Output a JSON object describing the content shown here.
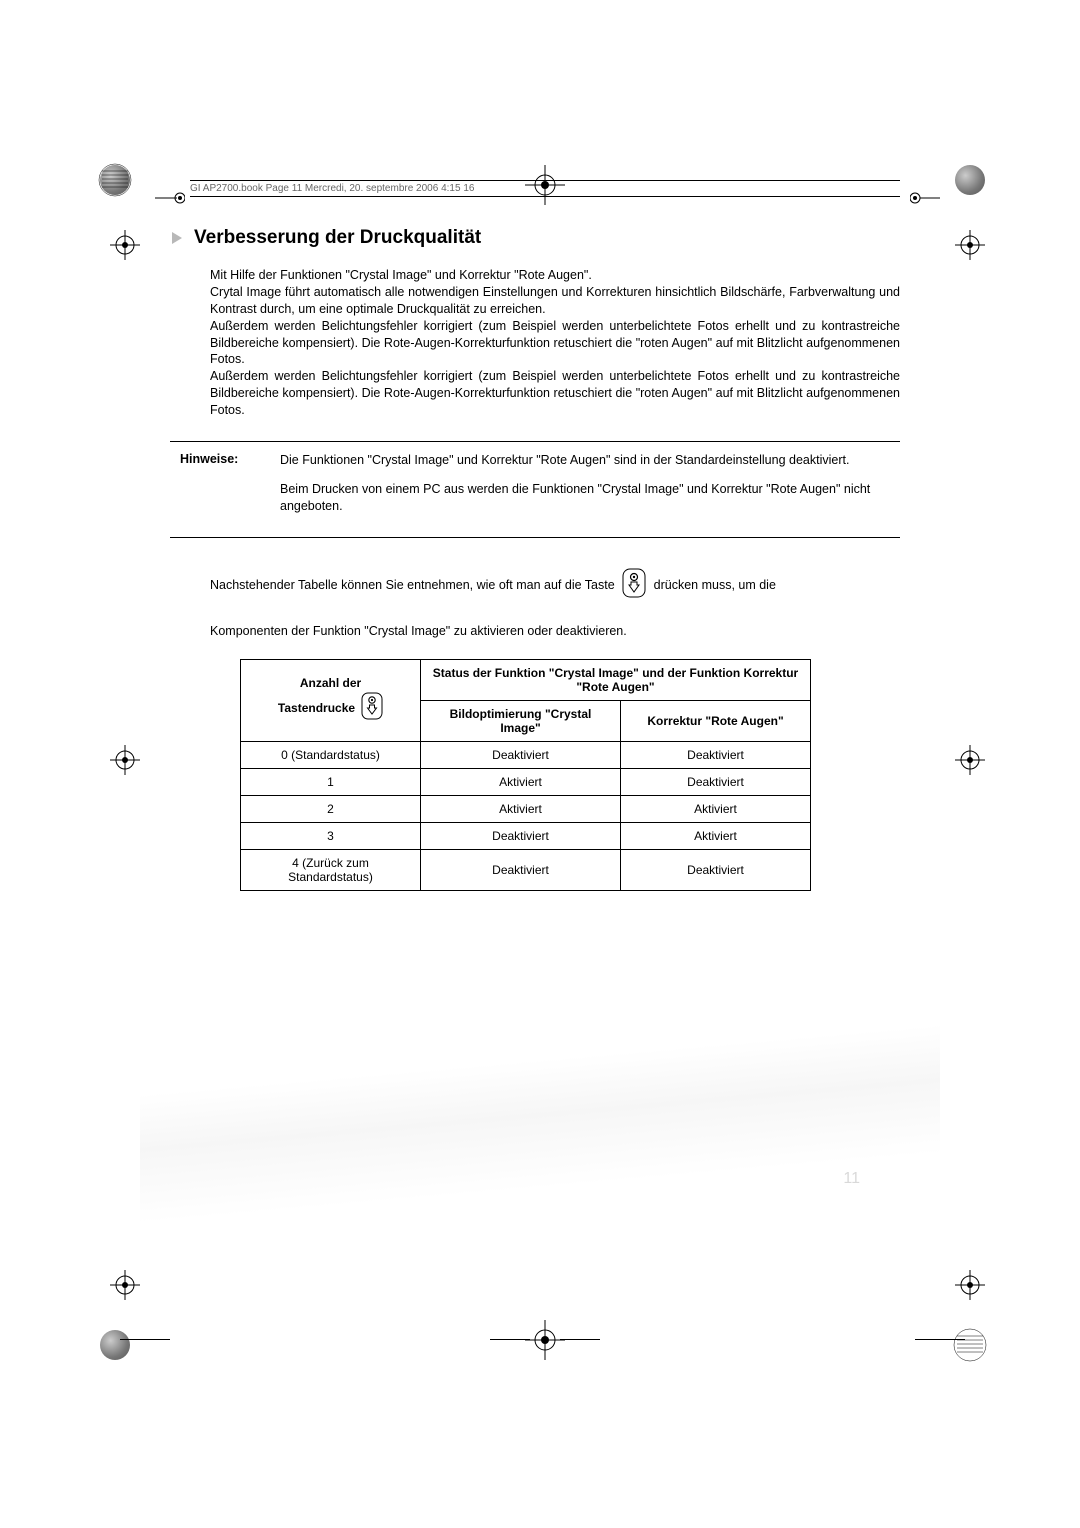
{
  "header_line": "GI AP2700.book  Page 11  Mercredi, 20. septembre 2006  4:15 16",
  "section_title": "Verbesserung der Druckqualität",
  "body_paragraph": "Mit Hilfe der Funktionen \"Crystal Image\" und  Korrektur  \"Rote Augen\".\nCrytal Image führt automatisch alle notwendigen Einstellungen und Korrekturen hinsichtlich Bildschärfe, Farbverwaltung und Kontrast durch, um eine optimale Druckqualität zu erreichen.\nAußerdem werden Belichtungsfehler korrigiert (zum Beispiel werden unterbelichtete Fotos erhellt und zu kontrastreiche Bildbereiche kompensiert). Die Rote-Augen-Korrekturfunktion retuschiert die \"roten Augen\" auf mit Blitzlicht aufgenommenen Fotos.\nAußerdem werden Belichtungsfehler korrigiert (zum Beispiel werden unterbelichtete Fotos erhellt und zu kontrastreiche Bildbereiche kompensiert). Die Rote-Augen-Korrekturfunktion retuschiert die \"roten Augen\" auf mit Blitzlicht aufgenommenen Fotos.",
  "hinweise_label": "Hinweise:",
  "hinweise_p1": "Die Funktionen \"Crystal Image\" und  Korrektur \"Rote Augen\" sind in der Standardeinstellung deaktiviert.",
  "hinweise_p2": "Beim Drucken von einem PC aus werden die Funktionen \"Crystal Image\" und Korrektur \"Rote Augen\" nicht angeboten.",
  "below_text_1": "Nachstehender Tabelle können Sie entnehmen, wie oft man auf die Taste",
  "below_text_2": "drücken muss, um die",
  "below_text_3": "Komponenten der Funktion \"Crystal Image\" zu aktivieren oder deaktivieren.",
  "table": {
    "header_col1_l1": "Anzahl der",
    "header_col1_l2": "Tastendrucke",
    "header_span": "Status der Funktion \"Crystal Image\" und der Funktion Korrektur \"Rote Augen\"",
    "header_col2": "Bildoptimierung \"Crystal Image\"",
    "header_col3": "Korrektur \"Rote Augen\"",
    "rows": [
      {
        "a": "0 (Standardstatus)",
        "b": "Deaktiviert",
        "c": "Deaktiviert"
      },
      {
        "a": "1",
        "b": "Aktiviert",
        "c": "Deaktiviert"
      },
      {
        "a": "2",
        "b": "Aktiviert",
        "c": "Aktiviert"
      },
      {
        "a": "3",
        "b": "Deaktiviert",
        "c": "Aktiviert"
      },
      {
        "a": "4 (Zurück zum Standardstatus)",
        "b": "Deaktiviert",
        "c": "Deaktiviert"
      }
    ]
  },
  "page_number": "11"
}
